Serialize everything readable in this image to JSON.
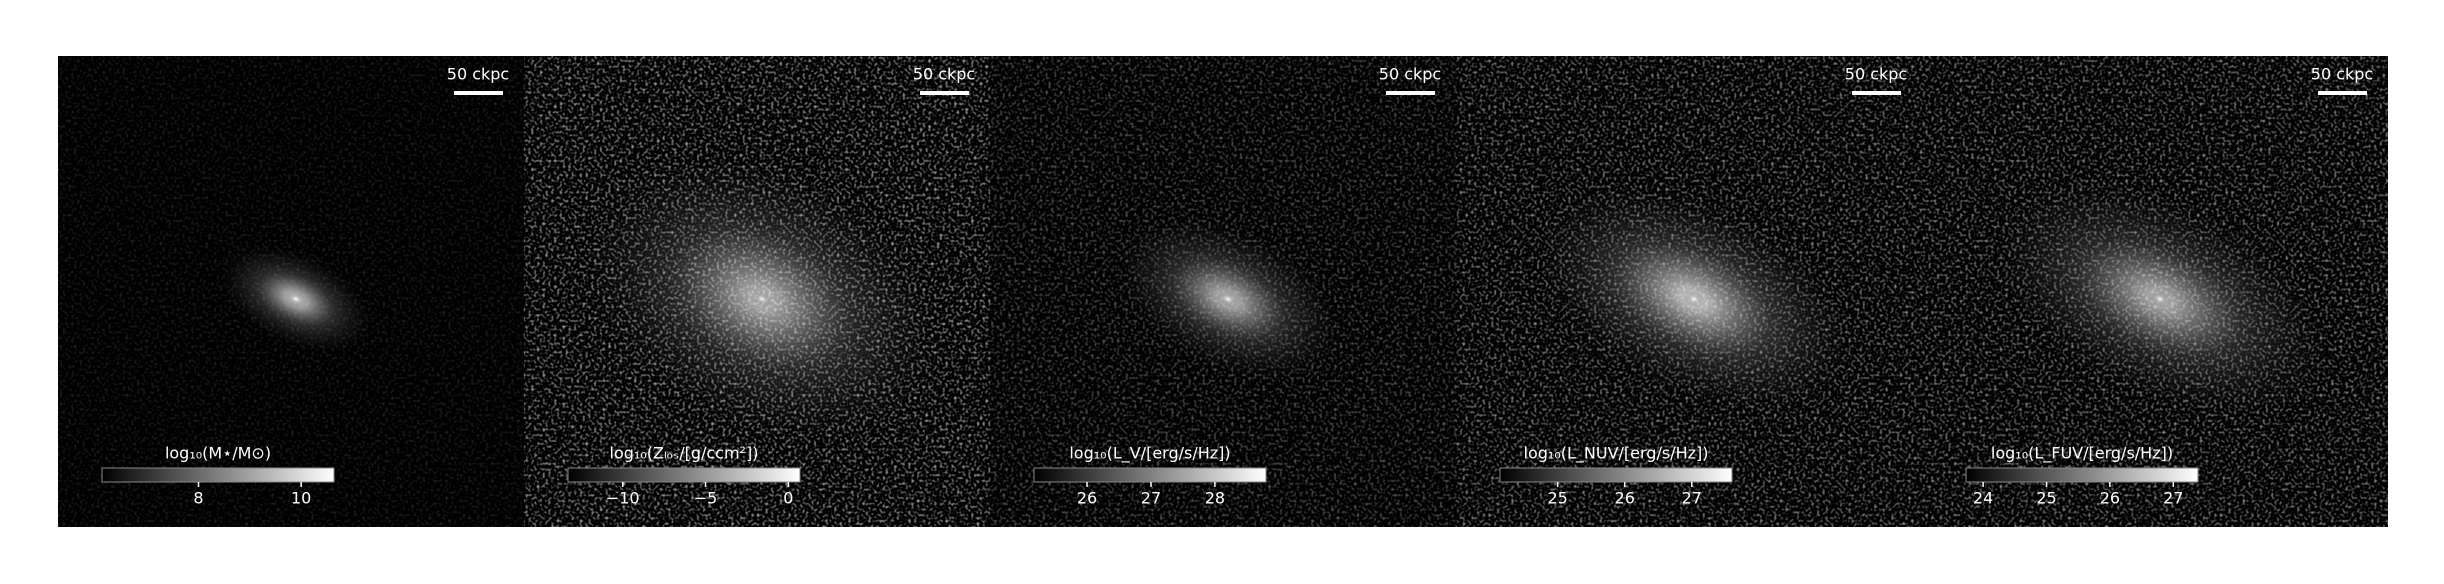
{
  "chart_data": [
    {
      "type": "image",
      "scale_label": "50 ckpc",
      "colorbar": {
        "label": "log₁₀(M⋆/M⊙)",
        "xlim": [
          6.12,
          10.64
        ],
        "xticks": [
          8,
          10
        ]
      }
    },
    {
      "type": "image",
      "scale_label": "50 ckpc",
      "colorbar": {
        "label": "log₁₀(Zₗₒₛ/[g/ccm²])",
        "xlim": [
          -13.3,
          0.7
        ],
        "xticks": [
          {
            "value": -10,
            "label": "−10"
          },
          {
            "value": -5,
            "label": "−5"
          },
          0
        ]
      }
    },
    {
      "type": "image",
      "scale_label": "50 ckpc",
      "colorbar": {
        "label": "log₁₀(L_V/[erg/s/Hz])",
        "xlim": [
          25.17,
          28.8
        ],
        "xticks": [
          26,
          27,
          28
        ]
      }
    },
    {
      "type": "image",
      "scale_label": "50 ckpc",
      "colorbar": {
        "label": "log₁₀(L_NUV/[erg/s/Hz])",
        "xlim": [
          24.14,
          27.6
        ],
        "xticks": [
          25,
          26,
          27
        ]
      }
    },
    {
      "type": "image",
      "scale_label": "50 ckpc",
      "colorbar": {
        "label": "log₁₀(L_FUV/[erg/s/Hz])",
        "xlim": [
          23.73,
          27.39
        ],
        "xticks": [
          24,
          25,
          26,
          27
        ]
      }
    }
  ]
}
